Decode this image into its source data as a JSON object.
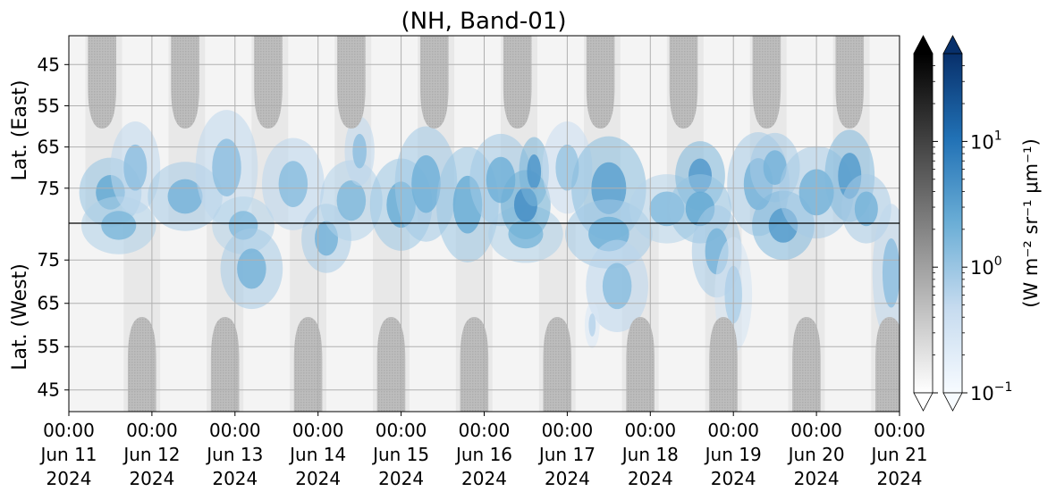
{
  "chart_data": {
    "type": "heatmap",
    "title": "(NH, Band-01)",
    "x_ticks": [
      {
        "time": "00:00",
        "date": "Jun 11",
        "year": "2024"
      },
      {
        "time": "00:00",
        "date": "Jun 12",
        "year": "2024"
      },
      {
        "time": "00:00",
        "date": "Jun 13",
        "year": "2024"
      },
      {
        "time": "00:00",
        "date": "Jun 14",
        "year": "2024"
      },
      {
        "time": "00:00",
        "date": "Jun 15",
        "year": "2024"
      },
      {
        "time": "00:00",
        "date": "Jun 16",
        "year": "2024"
      },
      {
        "time": "00:00",
        "date": "Jun 17",
        "year": "2024"
      },
      {
        "time": "00:00",
        "date": "Jun 18",
        "year": "2024"
      },
      {
        "time": "00:00",
        "date": "Jun 19",
        "year": "2024"
      },
      {
        "time": "00:00",
        "date": "Jun 20",
        "year": "2024"
      },
      {
        "time": "00:00",
        "date": "Jun 21",
        "year": "2024"
      }
    ],
    "xlim": [
      "2024-06-11 00:00",
      "2024-06-21 00:00"
    ],
    "panels": [
      {
        "ylabel": "Lat. (East)",
        "yticks": [
          "45",
          "55",
          "65",
          "75"
        ],
        "ylim": [
          38,
          83.5
        ]
      },
      {
        "ylabel": "Lat. (West)",
        "yticks": [
          "75",
          "65",
          "55",
          "45"
        ],
        "ylim": [
          83.5,
          40
        ]
      }
    ],
    "grid": true,
    "colorbars": [
      {
        "name": "gray",
        "scale": "log",
        "range": [
          0.1,
          50
        ],
        "extend": "both",
        "colors": [
          "#ffffff",
          "#000000"
        ]
      },
      {
        "name": "blues",
        "scale": "log",
        "range": [
          0.1,
          50
        ],
        "extend": "both",
        "colors": [
          "#f7fbff",
          "#08306b"
        ],
        "ticks": [
          {
            "base": "10",
            "exp": "1",
            "value": 10
          },
          {
            "base": "10",
            "exp": "0",
            "value": 1
          },
          {
            "base": "10",
            "exp": "−1",
            "value": 0.1
          }
        ]
      }
    ],
    "colorbar_label": "(W m⁻² sr⁻¹ μm⁻¹)",
    "night_mask_color": "#b8b8b8",
    "blobs": [
      {
        "day": 0.5,
        "lat": 76,
        "w": 0.25,
        "h": 6,
        "v": 2.5
      },
      {
        "day": 0.6,
        "lat": 84,
        "w": 0.3,
        "h": 5,
        "v": 1.6
      },
      {
        "day": 0.8,
        "lat": 70,
        "w": 0.2,
        "h": 8,
        "v": 1.2
      },
      {
        "day": 1.4,
        "lat": 77,
        "w": 0.3,
        "h": 6,
        "v": 1.8
      },
      {
        "day": 1.9,
        "lat": 70,
        "w": 0.25,
        "h": 10,
        "v": 1.2
      },
      {
        "day": 2.1,
        "lat": 84,
        "w": 0.25,
        "h": 5,
        "v": 1.4
      },
      {
        "day": 2.2,
        "lat": 94,
        "w": 0.25,
        "h": 7,
        "v": 1.8
      },
      {
        "day": 2.7,
        "lat": 74,
        "w": 0.25,
        "h": 8,
        "v": 1.3
      },
      {
        "day": 3.1,
        "lat": 87,
        "w": 0.2,
        "h": 6,
        "v": 1.8
      },
      {
        "day": 3.4,
        "lat": 78,
        "w": 0.25,
        "h": 7,
        "v": 1.5
      },
      {
        "day": 3.5,
        "lat": 66,
        "w": 0.12,
        "h": 6,
        "v": 1.2
      },
      {
        "day": 4.0,
        "lat": 79,
        "w": 0.25,
        "h": 8,
        "v": 2.2
      },
      {
        "day": 4.3,
        "lat": 74,
        "w": 0.25,
        "h": 10,
        "v": 2.0
      },
      {
        "day": 4.8,
        "lat": 79,
        "w": 0.25,
        "h": 10,
        "v": 2.2
      },
      {
        "day": 5.2,
        "lat": 73,
        "w": 0.25,
        "h": 8,
        "v": 2.0
      },
      {
        "day": 5.5,
        "lat": 86,
        "w": 0.3,
        "h": 5,
        "v": 1.6
      },
      {
        "day": 5.5,
        "lat": 79,
        "w": 0.2,
        "h": 6,
        "v": 5.0
      },
      {
        "day": 5.6,
        "lat": 71,
        "w": 0.12,
        "h": 6,
        "v": 4.0
      },
      {
        "day": 6.0,
        "lat": 70,
        "w": 0.2,
        "h": 8,
        "v": 1.0
      },
      {
        "day": 6.5,
        "lat": 75,
        "w": 0.3,
        "h": 9,
        "v": 3.0
      },
      {
        "day": 6.5,
        "lat": 86,
        "w": 0.35,
        "h": 6,
        "v": 2.0
      },
      {
        "day": 6.6,
        "lat": 98,
        "w": 0.25,
        "h": 8,
        "v": 1.3
      },
      {
        "day": 7.2,
        "lat": 80,
        "w": 0.3,
        "h": 6,
        "v": 1.4
      },
      {
        "day": 7.6,
        "lat": 72,
        "w": 0.2,
        "h": 6,
        "v": 3.8
      },
      {
        "day": 7.6,
        "lat": 80,
        "w": 0.25,
        "h": 6,
        "v": 2.5
      },
      {
        "day": 7.8,
        "lat": 90,
        "w": 0.2,
        "h": 8,
        "v": 1.8
      },
      {
        "day": 8.3,
        "lat": 74,
        "w": 0.25,
        "h": 9,
        "v": 1.8
      },
      {
        "day": 8.5,
        "lat": 70,
        "w": 0.2,
        "h": 6,
        "v": 1.8
      },
      {
        "day": 8.6,
        "lat": 84,
        "w": 0.25,
        "h": 6,
        "v": 3.5
      },
      {
        "day": 9.0,
        "lat": 76,
        "w": 0.3,
        "h": 8,
        "v": 1.8
      },
      {
        "day": 9.4,
        "lat": 72,
        "w": 0.2,
        "h": 8,
        "v": 3.5
      },
      {
        "day": 9.6,
        "lat": 80,
        "w": 0.2,
        "h": 6,
        "v": 1.8
      },
      {
        "day": 9.9,
        "lat": 95,
        "w": 0.15,
        "h": 12,
        "v": 1.2
      },
      {
        "day": 8.0,
        "lat": 100,
        "w": 0.15,
        "h": 10,
        "v": 0.7
      },
      {
        "day": 6.3,
        "lat": 107,
        "w": 0.06,
        "h": 4,
        "v": 0.6
      }
    ]
  }
}
